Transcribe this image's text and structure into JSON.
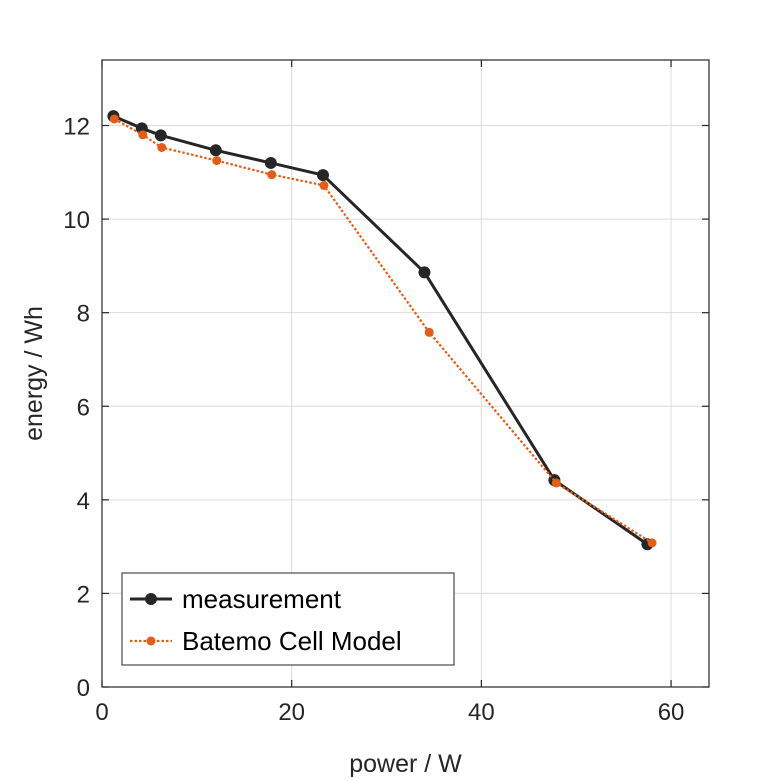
{
  "chart_data": {
    "type": "line",
    "title": "",
    "xlabel": "power / W",
    "ylabel": "energy / Wh",
    "xlim": [
      0,
      64
    ],
    "ylim": [
      0,
      13.4
    ],
    "xticks": [
      0,
      20,
      40,
      60
    ],
    "yticks": [
      0,
      2,
      4,
      6,
      8,
      10,
      12
    ],
    "grid": true,
    "legend_position": "bottom-left",
    "series": [
      {
        "name": "measurement",
        "color": "#262626",
        "line_style": "solid",
        "marker": "circle",
        "x": [
          1.2,
          4.2,
          6.2,
          12.0,
          17.8,
          23.3,
          34.0,
          47.7,
          57.5
        ],
        "y": [
          12.2,
          11.94,
          11.79,
          11.47,
          11.2,
          10.94,
          8.86,
          4.42,
          3.05
        ]
      },
      {
        "name": "Batemo Cell Model",
        "color": "#e35d16",
        "line_style": "dotted",
        "marker": "circle",
        "x": [
          1.3,
          4.3,
          6.3,
          12.1,
          17.9,
          23.4,
          34.5,
          47.9,
          58.0
        ],
        "y": [
          12.14,
          11.8,
          11.53,
          11.25,
          10.95,
          10.72,
          7.58,
          4.36,
          3.08
        ]
      }
    ]
  }
}
